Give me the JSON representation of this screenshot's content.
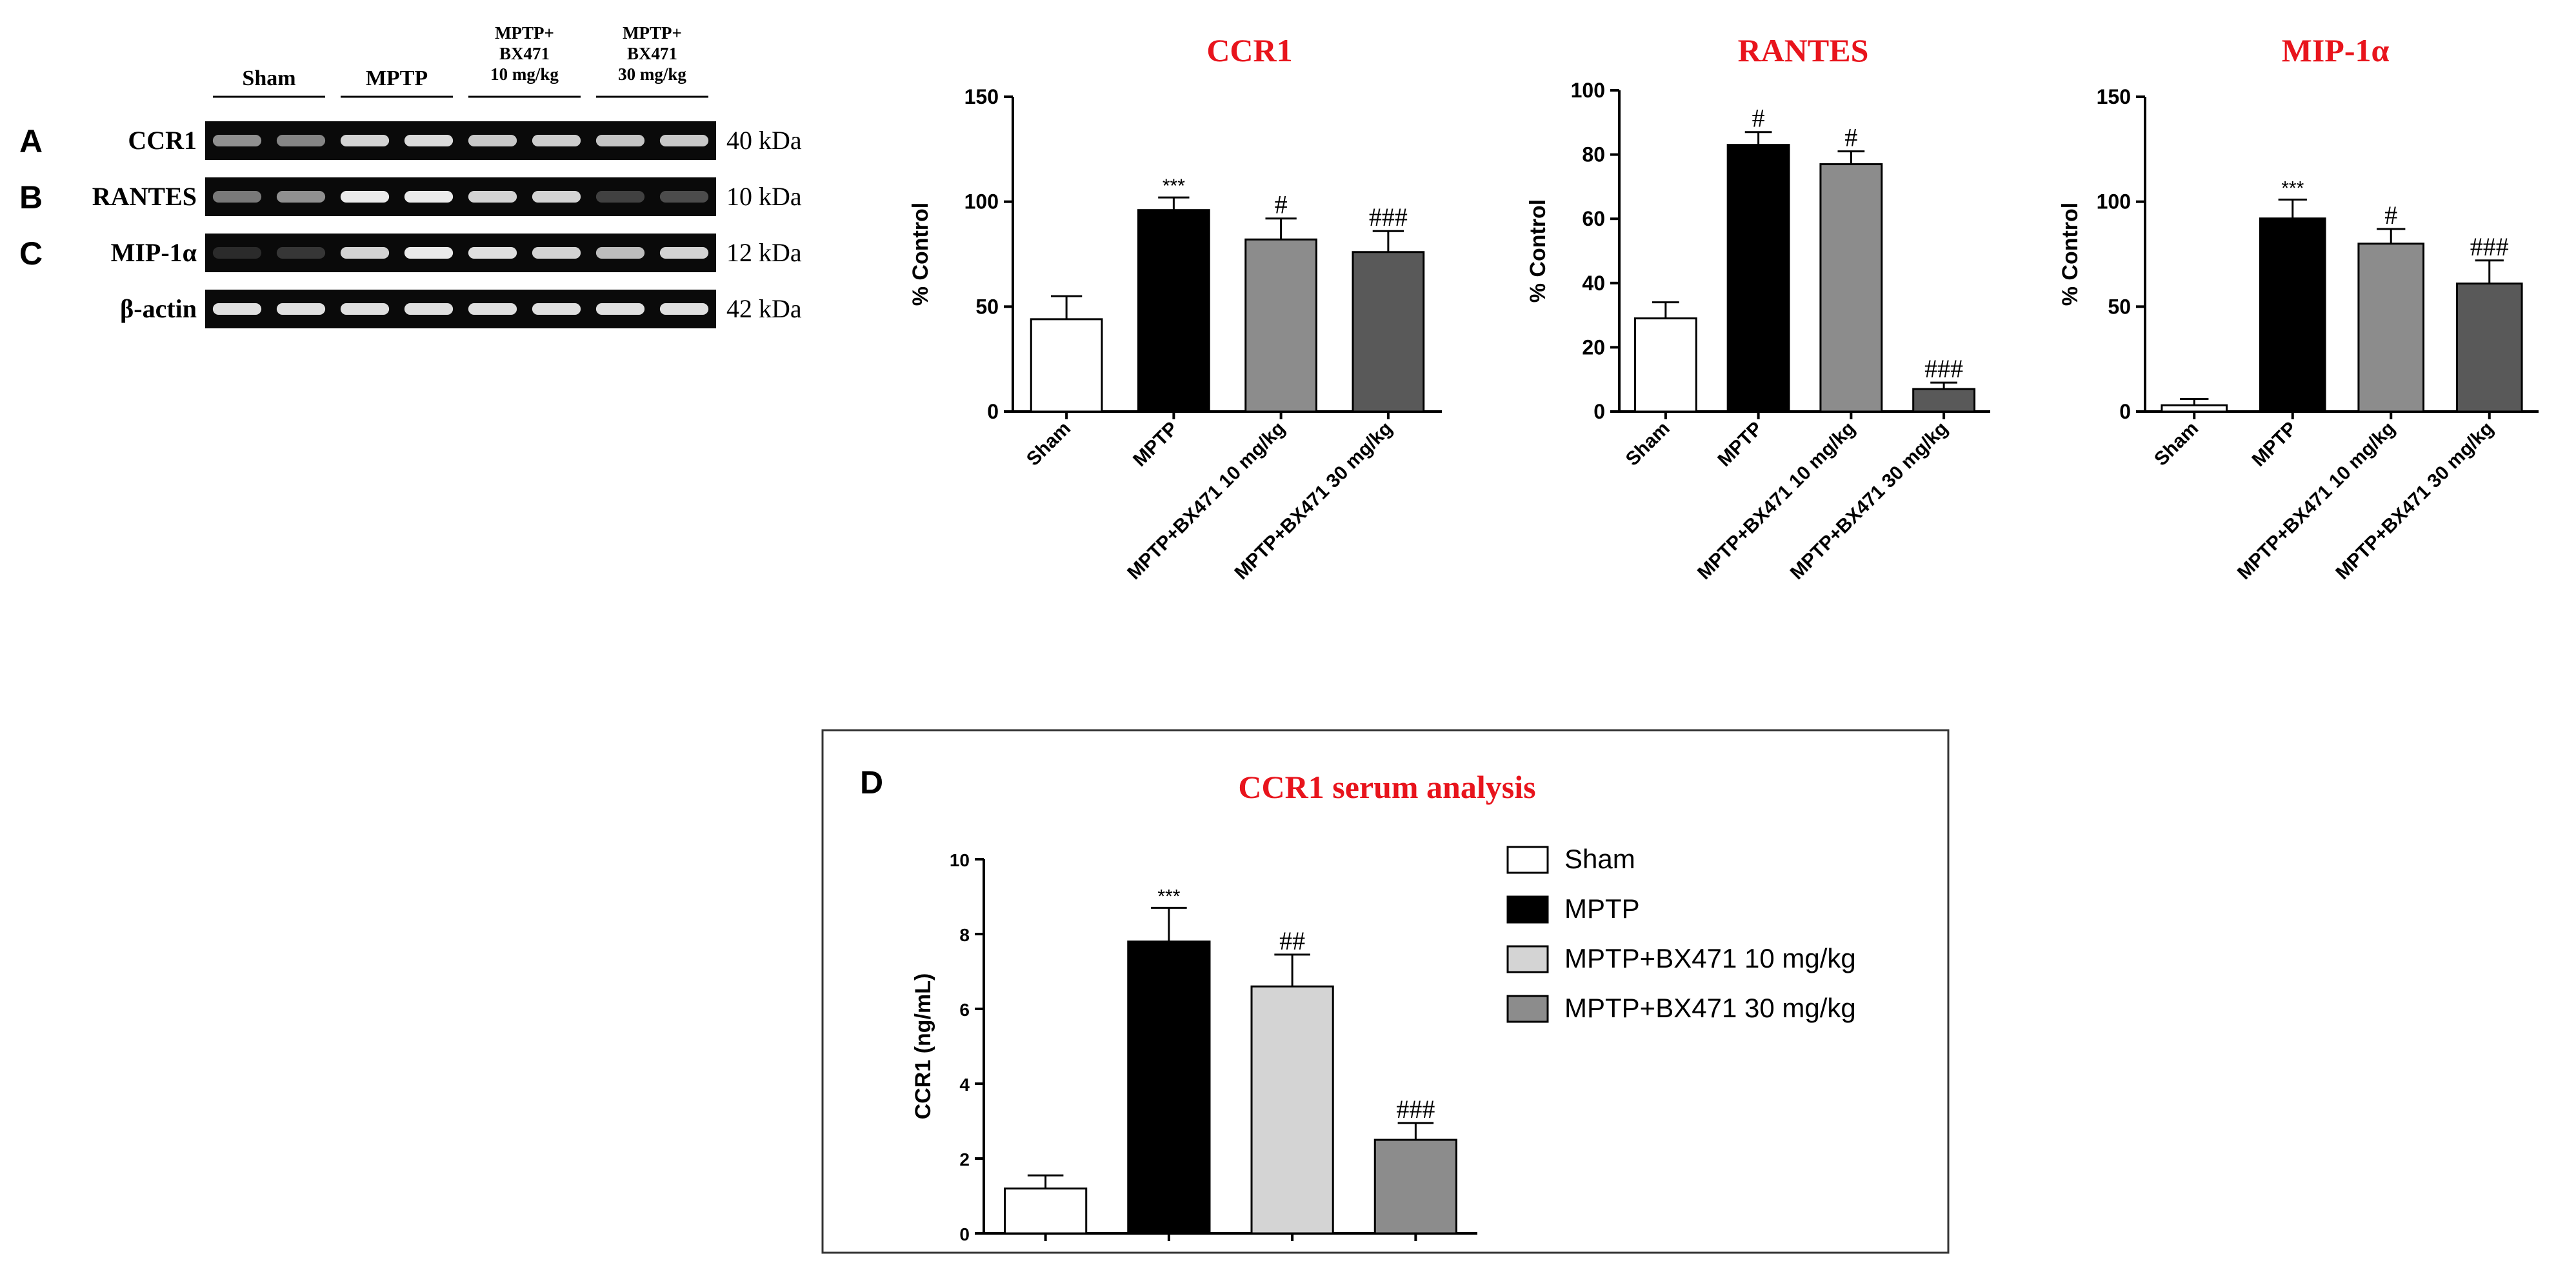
{
  "blot": {
    "group_headers": [
      {
        "lines": [
          "Sham"
        ]
      },
      {
        "lines": [
          "MPTP"
        ]
      },
      {
        "lines": [
          "MPTP+",
          "BX471",
          "10 mg/kg"
        ]
      },
      {
        "lines": [
          "MPTP+",
          "BX471",
          "30 mg/kg"
        ]
      }
    ],
    "rows": [
      {
        "panel": "A",
        "protein": "CCR1",
        "size": "40 kDa",
        "intensities": [
          0.55,
          0.5,
          0.85,
          0.88,
          0.8,
          0.82,
          0.78,
          0.8
        ]
      },
      {
        "panel": "B",
        "protein": "RANTES",
        "size": "10 kDa",
        "intensities": [
          0.45,
          0.55,
          0.95,
          0.95,
          0.85,
          0.85,
          0.2,
          0.25
        ]
      },
      {
        "panel": "C",
        "protein": "MIP-1α",
        "size": "12 kDa",
        "intensities": [
          0.1,
          0.15,
          0.85,
          0.95,
          0.9,
          0.85,
          0.75,
          0.85
        ]
      },
      {
        "panel": "",
        "protein": "β-actin",
        "size": "42 kDa",
        "intensities": [
          0.9,
          0.9,
          0.9,
          0.9,
          0.9,
          0.9,
          0.9,
          0.9
        ]
      }
    ]
  },
  "chart_data": [
    {
      "type": "bar",
      "title": "CCR1",
      "ylabel": "% Control",
      "ylim": [
        0,
        150
      ],
      "yticks": [
        0,
        50,
        100,
        150
      ],
      "categories": [
        "Sham",
        "MPTP",
        "MPTP+BX471 10 mg/kg",
        "MPTP+BX471 30 mg/kg"
      ],
      "values": [
        44,
        96,
        82,
        76
      ],
      "errors": [
        11,
        6,
        10,
        10
      ],
      "fills": [
        "#ffffff",
        "#000000",
        "#8c8c8c",
        "#595959"
      ],
      "annotations": [
        "",
        "***",
        "#",
        "###"
      ]
    },
    {
      "type": "bar",
      "title": "RANTES",
      "ylabel": "% Control",
      "ylim": [
        0,
        100
      ],
      "yticks": [
        0,
        20,
        40,
        60,
        80,
        100
      ],
      "categories": [
        "Sham",
        "MPTP",
        "MPTP+BX471 10 mg/kg",
        "MPTP+BX471 30 mg/kg"
      ],
      "values": [
        29,
        83,
        77,
        7
      ],
      "errors": [
        5,
        4,
        4,
        2
      ],
      "fills": [
        "#ffffff",
        "#000000",
        "#8c8c8c",
        "#595959"
      ],
      "annotations": [
        "",
        "#",
        "#",
        "###"
      ]
    },
    {
      "type": "bar",
      "title": "MIP-1α",
      "ylabel": "% Control",
      "ylim": [
        0,
        150
      ],
      "yticks": [
        0,
        50,
        100,
        150
      ],
      "categories": [
        "Sham",
        "MPTP",
        "MPTP+BX471 10 mg/kg",
        "MPTP+BX471 30 mg/kg"
      ],
      "values": [
        3,
        92,
        80,
        61
      ],
      "errors": [
        3,
        9,
        7,
        11
      ],
      "fills": [
        "#ffffff",
        "#000000",
        "#8c8c8c",
        "#595959"
      ],
      "annotations": [
        "",
        "***",
        "#",
        "###"
      ]
    },
    {
      "type": "bar",
      "panel": "D",
      "title": "CCR1 serum analysis",
      "ylabel": "CCR1 (ng/mL)",
      "ylim": [
        0,
        10
      ],
      "yticks": [
        0,
        2,
        4,
        6,
        8,
        10
      ],
      "categories": [
        "Sham",
        "MPTP",
        "MPTP+BX471 10 mg/kg",
        "MPTP+BX471 30 mg/kg"
      ],
      "values": [
        1.2,
        7.8,
        6.6,
        2.5
      ],
      "errors": [
        0.35,
        0.9,
        0.85,
        0.45
      ],
      "fills": [
        "#ffffff",
        "#000000",
        "#d4d4d4",
        "#8c8c8c"
      ],
      "annotations": [
        "",
        "***",
        "##",
        "###"
      ],
      "legend": [
        "Sham",
        "MPTP",
        "MPTP+BX471 10 mg/kg",
        "MPTP+BX471 30 mg/kg"
      ]
    }
  ],
  "colors": {
    "title_red": "#e8141c",
    "axis": "#000000"
  }
}
